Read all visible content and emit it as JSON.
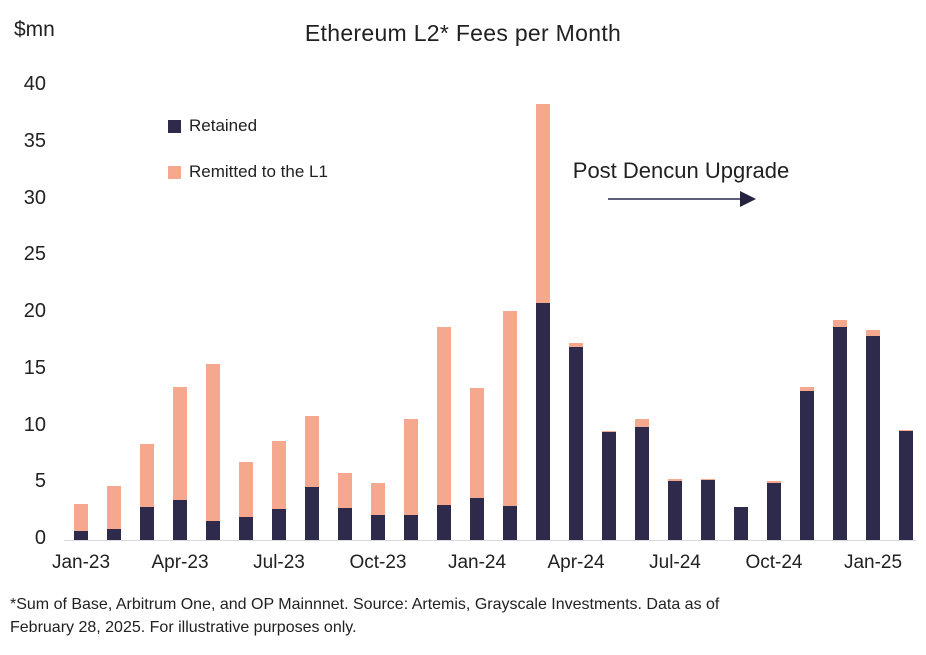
{
  "header": {
    "units_label": "$mn",
    "title": "Ethereum L2* Fees per Month"
  },
  "legend": {
    "items": [
      {
        "label": "Retained",
        "color": "#2d2a4c"
      },
      {
        "label": "Remitted to the L1",
        "color": "#f5a88d"
      }
    ]
  },
  "annotation": {
    "text": "Post Dencun Upgrade",
    "arrow_direction": "right"
  },
  "footnote": {
    "line1": "*Sum of Base, Arbitrum One, and OP Mainnnet. Source: Artemis, Grayscale Investments. Data as of",
    "line2": "February 28, 2025. For illustrative purposes only."
  },
  "colors": {
    "retained": "#2d2a4c",
    "remitted": "#f5a88d",
    "axis_line": "#d8d8de",
    "text": "#212121",
    "arrow_line": "#5f5f7d",
    "arrow_head": "#25223f"
  },
  "chart_data": {
    "type": "bar",
    "stacked": true,
    "title": "Ethereum L2* Fees per Month",
    "xlabel": "",
    "ylabel": "$mn",
    "ylim": [
      0,
      40
    ],
    "yticks": [
      0,
      5,
      10,
      15,
      20,
      25,
      30,
      35,
      40
    ],
    "grid": false,
    "legend_position": "upper-left-inside",
    "categories": [
      "Jan-23",
      "Feb-23",
      "Mar-23",
      "Apr-23",
      "May-23",
      "Jun-23",
      "Jul-23",
      "Aug-23",
      "Sep-23",
      "Oct-23",
      "Nov-23",
      "Dec-23",
      "Jan-24",
      "Feb-24",
      "Mar-24",
      "Apr-24",
      "May-24",
      "Jun-24",
      "Jul-24",
      "Aug-24",
      "Sep-24",
      "Oct-24",
      "Nov-24",
      "Dec-24",
      "Jan-25",
      "Feb-25"
    ],
    "x_tick_labels": [
      "Jan-23",
      "Apr-23",
      "Jul-23",
      "Oct-23",
      "Jan-24",
      "Apr-24",
      "Jul-24",
      "Oct-24",
      "Jan-25"
    ],
    "x_tick_every_n_months": 3,
    "series": [
      {
        "name": "Retained",
        "color": "#2d2a4c",
        "values": [
          0.8,
          1.0,
          2.9,
          3.5,
          1.7,
          2.0,
          2.7,
          4.7,
          2.8,
          2.2,
          2.2,
          3.1,
          3.7,
          3.0,
          20.9,
          17.0,
          9.5,
          10.0,
          5.2,
          5.3,
          2.9,
          5.0,
          13.1,
          18.8,
          18.0,
          9.6
        ]
      },
      {
        "name": "Remitted to the L1",
        "color": "#f5a88d",
        "values": [
          2.4,
          3.8,
          5.6,
          10.0,
          13.8,
          4.9,
          6.0,
          6.2,
          3.1,
          2.8,
          8.5,
          15.7,
          9.7,
          17.2,
          17.5,
          0.4,
          0.1,
          0.7,
          0.2,
          0.1,
          0.0,
          0.2,
          0.4,
          0.6,
          0.5,
          0.1
        ]
      }
    ]
  }
}
